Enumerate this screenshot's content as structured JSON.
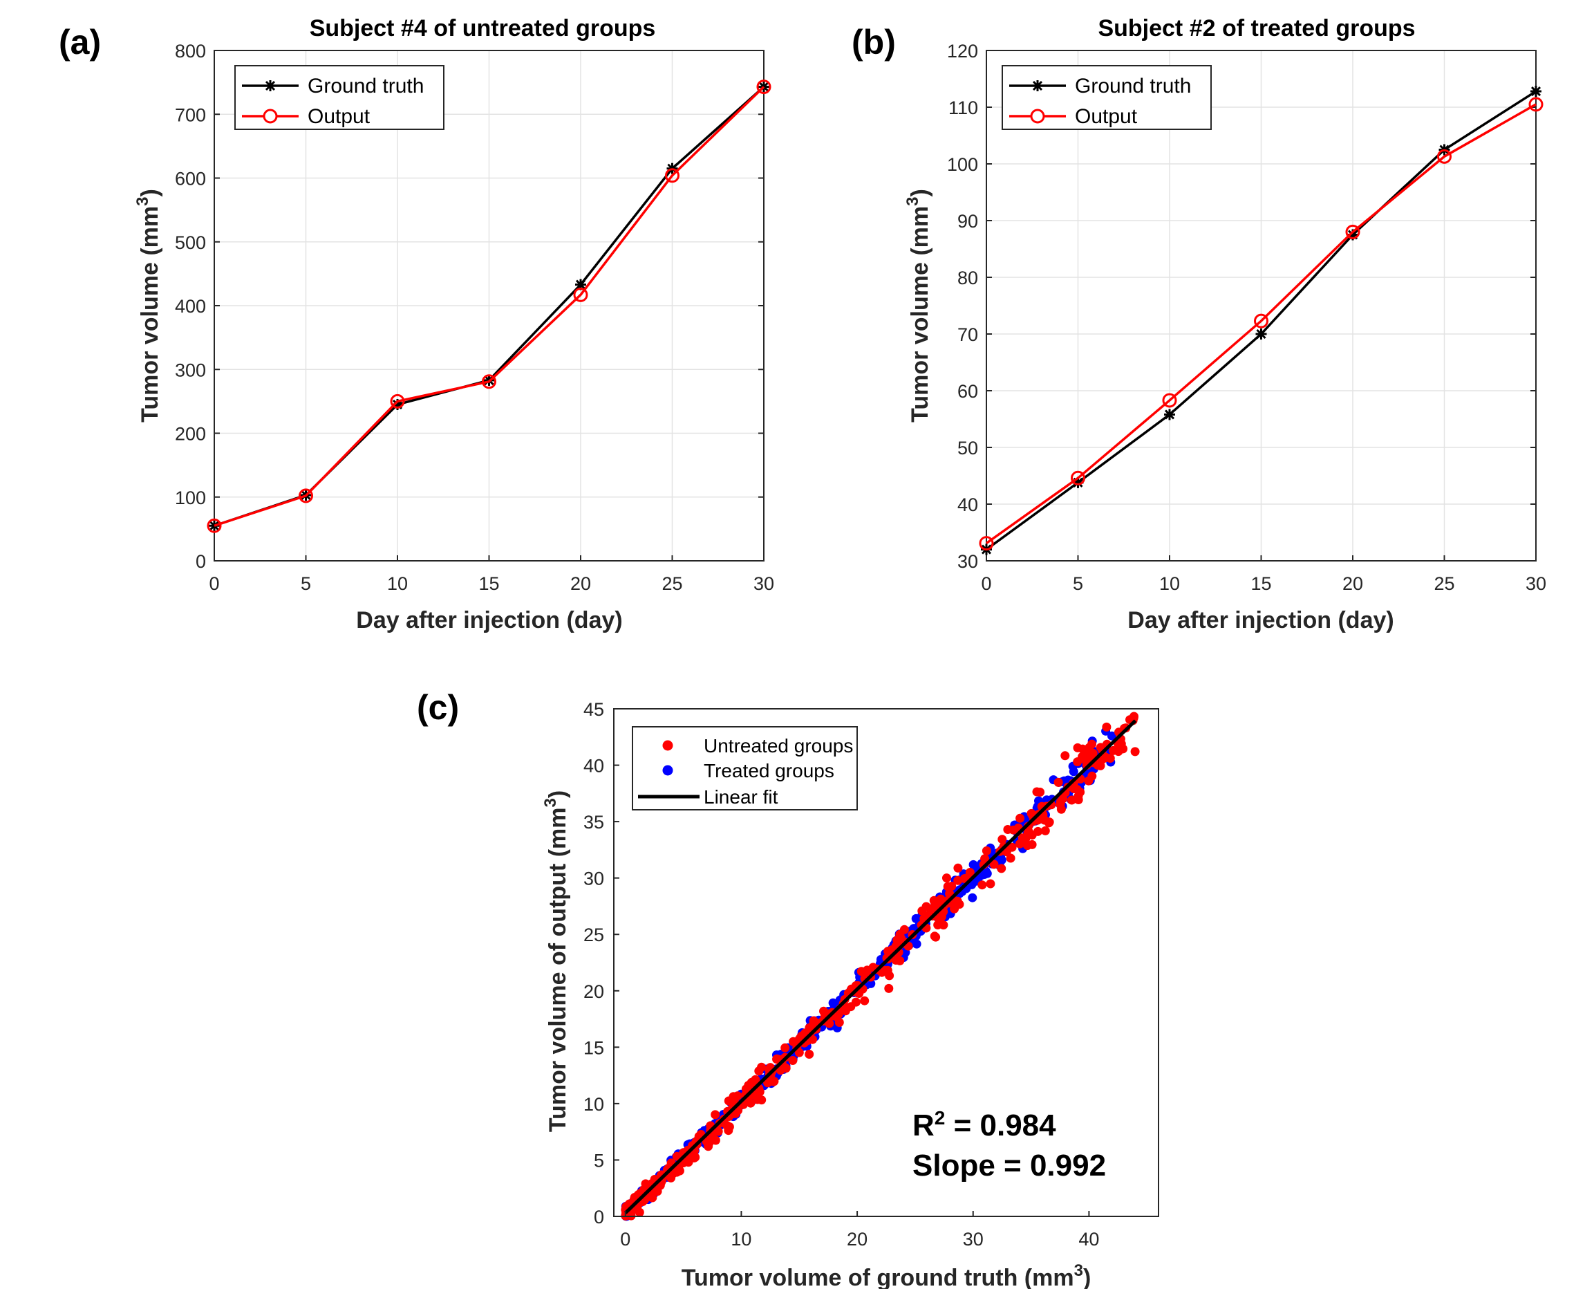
{
  "chart_data": [
    {
      "panel": "(a)",
      "type": "line",
      "title": "Subject #4 of untreated groups",
      "xlabel": "Day after injection (day)",
      "ylabel": "Tumor volume (mm",
      "ylabel_sup": "3",
      "ylabel_close": ")",
      "x": [
        0,
        5,
        10,
        15,
        20,
        25,
        30
      ],
      "xlim": [
        0,
        30
      ],
      "ylim": [
        0,
        800
      ],
      "xticks": [
        "0",
        "5",
        "10",
        "15",
        "20",
        "25",
        "30"
      ],
      "yticks": [
        "0",
        "100",
        "200",
        "300",
        "400",
        "500",
        "600",
        "700",
        "800"
      ],
      "grid": true,
      "legend_position": "top-left",
      "series": [
        {
          "name": "Ground truth",
          "color": "#000000",
          "marker": "asterisk",
          "values": [
            55,
            103,
            245,
            283,
            433,
            615,
            743
          ]
        },
        {
          "name": "Output",
          "color": "#ff0000",
          "marker": "circle",
          "values": [
            55,
            102,
            250,
            281,
            417,
            604,
            743
          ]
        }
      ]
    },
    {
      "panel": "(b)",
      "type": "line",
      "title": "Subject #2 of treated groups",
      "xlabel": "Day after injection (day)",
      "ylabel": "Tumor volume (mm",
      "ylabel_sup": "3",
      "ylabel_close": ")",
      "x": [
        0,
        5,
        10,
        15,
        20,
        25,
        30
      ],
      "xlim": [
        0,
        30
      ],
      "ylim": [
        30,
        120
      ],
      "xticks": [
        "0",
        "5",
        "10",
        "15",
        "20",
        "25",
        "30"
      ],
      "yticks": [
        "30",
        "40",
        "50",
        "60",
        "70",
        "80",
        "90",
        "100",
        "110",
        "120"
      ],
      "grid": true,
      "legend_position": "top-left",
      "series": [
        {
          "name": "Ground truth",
          "color": "#000000",
          "marker": "asterisk",
          "values": [
            32,
            43.8,
            55.8,
            70,
            87.5,
            102.5,
            112.8
          ]
        },
        {
          "name": "Output",
          "color": "#ff0000",
          "marker": "circle",
          "values": [
            33.1,
            44.6,
            58.3,
            72.3,
            88,
            101.3,
            110.5
          ]
        }
      ]
    },
    {
      "panel": "(c)",
      "type": "scatter",
      "xlabel": "Tumor volume of ground truth (mm",
      "xlabel_sup": "3",
      "xlabel_close": ")",
      "ylabel": "Tumor volume of output (mm",
      "ylabel_sup": "3",
      "ylabel_close": ")",
      "xlim": [
        -1,
        46
      ],
      "ylim": [
        0,
        45
      ],
      "xticks": [
        0,
        10,
        20,
        30,
        40
      ],
      "yticks": [
        0,
        5,
        10,
        15,
        20,
        25,
        30,
        35,
        40,
        45
      ],
      "grid": false,
      "legend_position": "top-left",
      "series": [
        {
          "name": "Untreated groups",
          "color": "#ff0000",
          "points_note": "dense cloud along the diagonal"
        },
        {
          "name": "Treated groups",
          "color": "#0000ff",
          "points_note": "dense cloud along the diagonal"
        }
      ],
      "fit": {
        "name": "Linear fit",
        "color": "#000000",
        "slope": 0.992,
        "intercept": 0.3,
        "x_range": [
          0,
          44
        ]
      },
      "annotations": {
        "r2_label": "R",
        "r2_sup": "2",
        "r2_value": " = 0.984",
        "slope_text": "Slope = 0.992"
      }
    }
  ]
}
